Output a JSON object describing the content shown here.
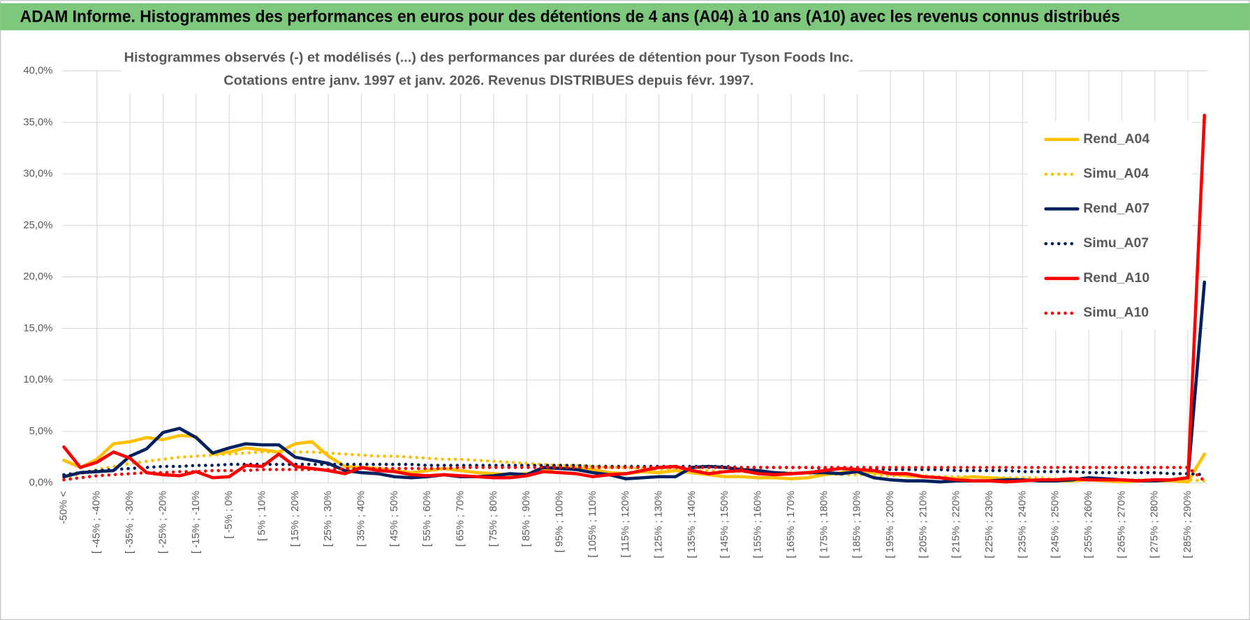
{
  "header": {
    "title": "ADAM Informe. Histogrammes des performances en euros pour des détentions de 4 ans (A04) à 10 ans (A10) avec les revenus connus distribués"
  },
  "chart_data": {
    "type": "line",
    "title": [
      "Histogrammes observés (-) et modélisés (...) des performances par durées de détention pour Tyson Foods Inc.",
      "Cotations entre janv. 1997 et janv. 2026. Revenus DISTRIBUES depuis févr. 1997."
    ],
    "categories": [
      "-50% <",
      null,
      "[ -45% ; -40%",
      null,
      "[ -35% ; -30%",
      null,
      "[ -25% ; -20%",
      null,
      "[ -15% ; -10%",
      null,
      "[ -5% ; 0%",
      null,
      "[ 5% ; 10%",
      null,
      "[ 15% ; 20%",
      null,
      "[ 25% ; 30%",
      null,
      "[ 35% ; 40%",
      null,
      "[ 45% ; 50%",
      null,
      "[ 55% ; 60%",
      null,
      "[ 65% ; 70%",
      null,
      "[ 75% ; 80%",
      null,
      "[ 85% ; 90%",
      null,
      "[ 95% ; 100%",
      null,
      "[ 105% ; 110%",
      null,
      "[ 115% ; 120%",
      null,
      "[ 125% ; 130%",
      null,
      "[ 135% ; 140%",
      null,
      "[ 145% ; 150%",
      null,
      "[ 155% ; 160%",
      null,
      "[ 165% ; 170%",
      null,
      "[ 175% ; 180%",
      null,
      "[ 185% ; 190%",
      null,
      "[ 195% ; 200%",
      null,
      "[ 205% ; 210%",
      null,
      "[ 215% ; 220%",
      null,
      "[ 225% ; 230%",
      null,
      "[ 235% ; 240%",
      null,
      "[ 245% ; 250%",
      null,
      "[ 255% ; 260%",
      null,
      "[ 265% ; 270%",
      null,
      "[ 275% ; 280%",
      null,
      "[ 285% ; 290%",
      null
    ],
    "ylim": [
      0,
      40
    ],
    "yticks": [
      {
        "value": 0,
        "label": "0,0%"
      },
      {
        "value": 5,
        "label": "5,0%"
      },
      {
        "value": 10,
        "label": "10,0%"
      },
      {
        "value": 15,
        "label": "15,0%"
      },
      {
        "value": 20,
        "label": "20,0%"
      },
      {
        "value": 25,
        "label": "25,0%"
      },
      {
        "value": 30,
        "label": "30,0%"
      },
      {
        "value": 35,
        "label": "35,0%"
      },
      {
        "value": 40,
        "label": "40,0%"
      }
    ],
    "grid": true,
    "legend": "right",
    "series": [
      {
        "name": "Rend_A04",
        "color": "#ffc000",
        "style": "solid",
        "values": [
          2.2,
          1.5,
          2.3,
          3.8,
          4.0,
          4.4,
          4.2,
          4.6,
          4.5,
          2.8,
          3.0,
          3.4,
          3.2,
          3.0,
          3.8,
          4.0,
          2.6,
          1.6,
          1.5,
          1.4,
          1.2,
          1.0,
          1.2,
          1.4,
          1.2,
          1.0,
          0.9,
          0.8,
          0.9,
          1.2,
          1.5,
          1.4,
          1.3,
          1.0,
          0.9,
          1.1,
          1.0,
          1.2,
          1.0,
          0.8,
          0.6,
          0.6,
          0.5,
          0.5,
          0.4,
          0.5,
          0.8,
          1.0,
          1.2,
          1.0,
          0.9,
          0.7,
          0.6,
          0.5,
          0.4,
          0.6,
          0.5,
          0.4,
          0.3,
          0.3,
          0.2,
          0.2,
          0.3,
          0.2,
          0.1,
          0.2,
          0.2,
          0.2,
          0.1,
          2.8
        ]
      },
      {
        "name": "Simu_A04",
        "color": "#ffc000",
        "style": "dotted",
        "values": [
          0.5,
          0.9,
          1.3,
          1.6,
          1.9,
          2.1,
          2.3,
          2.5,
          2.6,
          2.7,
          2.8,
          2.9,
          3.0,
          3.0,
          3.0,
          3.0,
          2.9,
          2.8,
          2.7,
          2.6,
          2.6,
          2.5,
          2.4,
          2.3,
          2.3,
          2.2,
          2.1,
          2.0,
          1.9,
          1.8,
          1.7,
          1.7,
          1.6,
          1.5,
          1.5,
          1.4,
          1.3,
          1.3,
          1.2,
          1.2,
          1.1,
          1.1,
          1.0,
          1.0,
          1.0,
          0.9,
          0.9,
          0.8,
          0.8,
          0.8,
          0.7,
          0.7,
          0.7,
          0.6,
          0.6,
          0.6,
          0.5,
          0.5,
          0.5,
          0.5,
          0.4,
          0.4,
          0.4,
          0.4,
          0.3,
          0.3,
          0.3,
          0.3,
          0.3,
          0.2
        ]
      },
      {
        "name": "Rend_A07",
        "color": "#002060",
        "style": "solid",
        "values": [
          0.6,
          1.0,
          1.1,
          1.2,
          2.6,
          3.3,
          4.9,
          5.3,
          4.4,
          2.9,
          3.4,
          3.8,
          3.7,
          3.7,
          2.5,
          2.2,
          1.9,
          1.2,
          1.0,
          0.9,
          0.6,
          0.5,
          0.6,
          0.8,
          0.6,
          0.6,
          0.7,
          0.9,
          0.8,
          1.5,
          1.4,
          1.3,
          1.0,
          0.8,
          0.4,
          0.5,
          0.6,
          0.6,
          1.5,
          1.6,
          1.5,
          1.3,
          1.2,
          1.0,
          0.9,
          1.0,
          1.0,
          0.9,
          1.1,
          0.5,
          0.3,
          0.2,
          0.2,
          0.1,
          0.2,
          0.2,
          0.2,
          0.3,
          0.3,
          0.2,
          0.2,
          0.3,
          0.5,
          0.4,
          0.3,
          0.2,
          0.2,
          0.3,
          0.5,
          19.5
        ]
      },
      {
        "name": "Simu_A07",
        "color": "#002060",
        "style": "dotted",
        "values": [
          0.8,
          1.0,
          1.2,
          1.3,
          1.4,
          1.5,
          1.6,
          1.6,
          1.7,
          1.7,
          1.8,
          1.8,
          1.8,
          1.8,
          1.8,
          1.8,
          1.8,
          1.8,
          1.8,
          1.8,
          1.8,
          1.8,
          1.7,
          1.7,
          1.7,
          1.7,
          1.7,
          1.7,
          1.7,
          1.7,
          1.7,
          1.7,
          1.6,
          1.6,
          1.6,
          1.6,
          1.6,
          1.6,
          1.6,
          1.6,
          1.6,
          1.5,
          1.5,
          1.5,
          1.5,
          1.5,
          1.4,
          1.4,
          1.4,
          1.4,
          1.3,
          1.3,
          1.3,
          1.3,
          1.2,
          1.2,
          1.2,
          1.2,
          1.1,
          1.1,
          1.1,
          1.1,
          1.0,
          1.0,
          1.0,
          1.0,
          1.0,
          0.9,
          0.9,
          0.8
        ]
      },
      {
        "name": "Rend_A10",
        "color": "#ff0000",
        "style": "solid",
        "values": [
          3.5,
          1.5,
          2.0,
          3.0,
          2.4,
          1.0,
          0.8,
          0.7,
          1.1,
          0.5,
          0.6,
          1.7,
          1.6,
          2.8,
          1.6,
          1.4,
          1.2,
          0.9,
          1.5,
          1.2,
          1.1,
          0.8,
          0.7,
          0.8,
          0.7,
          0.6,
          0.5,
          0.5,
          0.7,
          1.1,
          1.0,
          0.9,
          0.6,
          0.8,
          0.9,
          1.2,
          1.5,
          1.6,
          1.2,
          0.9,
          1.1,
          1.2,
          0.9,
          0.8,
          0.9,
          1.0,
          1.2,
          1.4,
          1.3,
          1.2,
          0.9,
          0.9,
          0.6,
          0.5,
          0.3,
          0.2,
          0.2,
          0.1,
          0.2,
          0.3,
          0.3,
          0.4,
          0.3,
          0.3,
          0.3,
          0.2,
          0.3,
          0.3,
          0.5,
          35.7
        ]
      },
      {
        "name": "Simu_A10",
        "color": "#ff0000",
        "style": "dotted",
        "values": [
          0.3,
          0.5,
          0.7,
          0.8,
          0.9,
          1.0,
          1.0,
          1.1,
          1.1,
          1.2,
          1.2,
          1.2,
          1.3,
          1.3,
          1.3,
          1.3,
          1.3,
          1.4,
          1.4,
          1.4,
          1.4,
          1.4,
          1.4,
          1.4,
          1.5,
          1.5,
          1.5,
          1.5,
          1.5,
          1.5,
          1.5,
          1.5,
          1.5,
          1.5,
          1.5,
          1.5,
          1.5,
          1.5,
          1.5,
          1.5,
          1.5,
          1.5,
          1.5,
          1.5,
          1.5,
          1.5,
          1.5,
          1.5,
          1.5,
          1.5,
          1.5,
          1.5,
          1.5,
          1.5,
          1.5,
          1.5,
          1.5,
          1.5,
          1.5,
          1.5,
          1.5,
          1.5,
          1.5,
          1.5,
          1.5,
          1.5,
          1.5,
          1.5,
          1.5,
          0.2
        ]
      }
    ]
  }
}
